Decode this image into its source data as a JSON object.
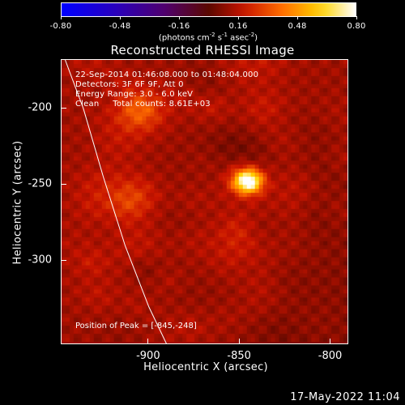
{
  "colorbar": {
    "ticks": [
      "-0.80",
      "-0.48",
      "-0.16",
      "0.16",
      "0.48",
      "0.80"
    ],
    "unit_parts": [
      "(photons cm",
      "-2",
      " s",
      "-1",
      " asec",
      "-2",
      ")"
    ],
    "range": [
      -0.8,
      0.8
    ]
  },
  "chart_data": {
    "type": "heatmap",
    "title": "Reconstructed RHESSI Image",
    "xlabel": "Heliocentric X (arcsec)",
    "ylabel": "Heliocentric Y (arcsec)",
    "xlim": [
      -948,
      -790
    ],
    "ylim": [
      -355,
      -168
    ],
    "x_ticks": [
      "-900",
      "-850",
      "-800"
    ],
    "y_ticks": [
      "-200",
      "-250",
      "-300"
    ],
    "x_tick_values": [
      -900,
      -850,
      -800
    ],
    "y_tick_values": [
      -200,
      -250,
      -300
    ],
    "peak": {
      "x": -845,
      "y": -248,
      "value": 0.8
    },
    "limb_curve": [
      [
        -946,
        -168
      ],
      [
        -936,
        -200
      ],
      [
        -925,
        -245
      ],
      [
        -913,
        -290
      ],
      [
        -900,
        -330
      ],
      [
        -890,
        -355
      ]
    ],
    "annotations": [
      "22-Sep-2014 01:46:08.000 to 01:48:04.000",
      "Detectors: 3F 6F 9F, Att 0",
      "Energy Range: 3.0 - 6.0 keV",
      "Clean     Total counts: 8.61E+03"
    ],
    "peak_label": "Position of Peak = [-845,-248]"
  },
  "timestamp": "17-May-2022 11:04"
}
